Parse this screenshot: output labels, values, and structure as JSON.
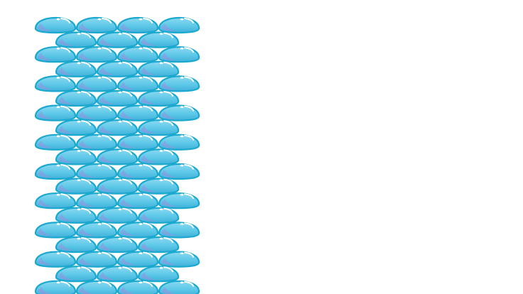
{
  "scene": {
    "description_visible_text": "",
    "background_color": "#ffffff"
  },
  "tiles": {
    "icon": "water-droplet-icon",
    "columns_even_rows": 4,
    "columns_odd_rows": 3,
    "rows": 19,
    "colors": {
      "outline": "#1aa8cf",
      "body": "#5ec8e8",
      "body_light": "#8ad9f0",
      "shade": "#3fb0da",
      "shade_purple": "#9b8fe0",
      "highlight": "#ffffff"
    }
  }
}
